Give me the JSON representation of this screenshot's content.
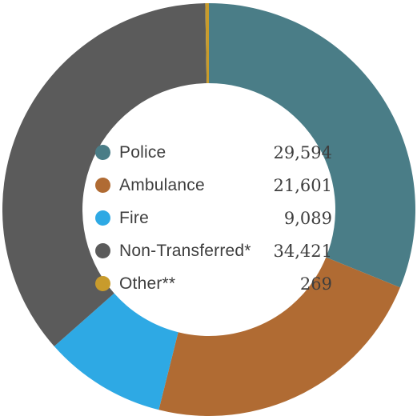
{
  "chart_data": {
    "type": "pie",
    "variant": "donut",
    "start_angle": "top",
    "direction": "clockwise",
    "categories": [
      "Police",
      "Ambulance",
      "Fire",
      "Non-Transferred*",
      "Other**"
    ],
    "values": [
      29594,
      21601,
      9089,
      34421,
      269
    ],
    "labels": [
      "29,594",
      "21,601",
      "9,089",
      "34,421",
      "269"
    ],
    "colors": [
      "#4a7d87",
      "#b06b33",
      "#2ea9e4",
      "#5b5b5b",
      "#c89b2c"
    ],
    "legend_position": "center"
  }
}
